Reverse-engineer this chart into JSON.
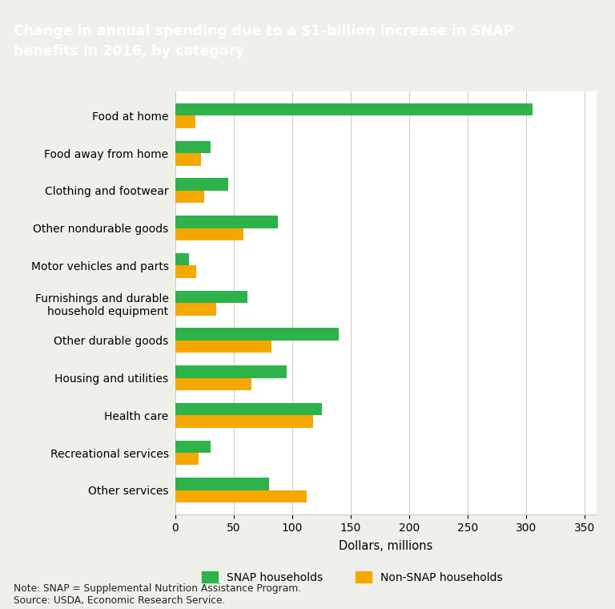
{
  "title_line1": "Change in annual spending due to a $1-billion increase in SNAP",
  "title_line2": "benefits in 2016, by category",
  "title_bg_color": "#1e3a5f",
  "title_text_color": "#ffffff",
  "categories": [
    "Food at home",
    "Food away from home",
    "Clothing and footwear",
    "Other nondurable goods",
    "Motor vehicles and parts",
    "Furnishings and durable\nhousehold equipment",
    "Other durable goods",
    "Housing and utilities",
    "Health care",
    "Recreational services",
    "Other services"
  ],
  "snap_values": [
    305,
    30,
    45,
    88,
    12,
    62,
    140,
    95,
    125,
    30,
    80
  ],
  "nonsnap_values": [
    17,
    22,
    25,
    58,
    18,
    35,
    82,
    65,
    118,
    20,
    112
  ],
  "snap_color": "#2db34a",
  "nonsnap_color": "#f5a800",
  "xlabel": "Dollars, millions",
  "xlim": [
    0,
    360
  ],
  "xticks": [
    0,
    50,
    100,
    150,
    200,
    250,
    300,
    350
  ],
  "grid_color": "#cccccc",
  "plot_bg_color": "#ffffff",
  "fig_bg_color": "#f0f0eb",
  "snap_label": "SNAP households",
  "nonsnap_label": "Non-SNAP households",
  "note": "Note: SNAP = Supplemental Nutrition Assistance Program.\nSource: USDA, Economic Research Service."
}
